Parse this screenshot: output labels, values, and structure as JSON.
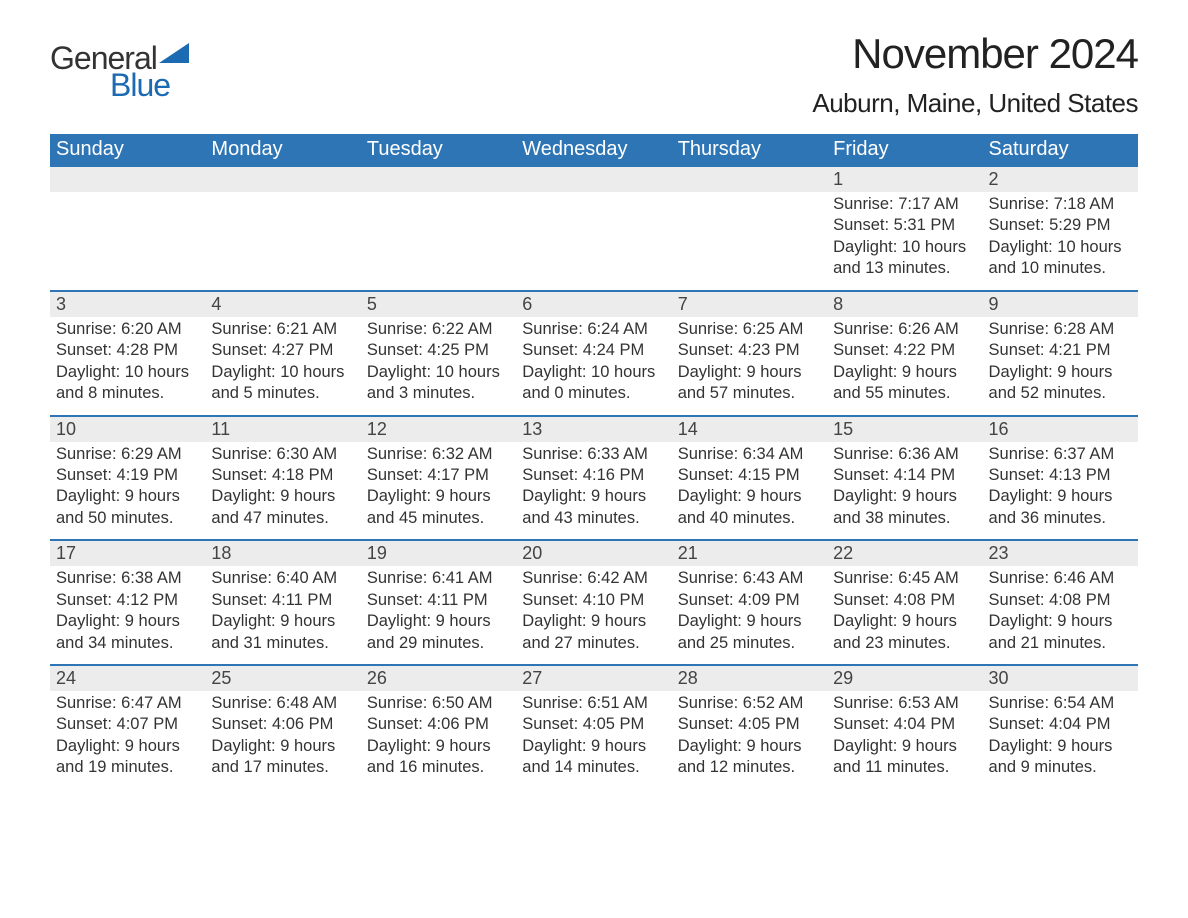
{
  "logo": {
    "word1": "General",
    "word2": "Blue"
  },
  "header": {
    "month_title": "November 2024",
    "location": "Auburn, Maine, United States"
  },
  "styling": {
    "header_bg": "#2e75b6",
    "header_text": "#ffffff",
    "daynum_bg": "#ececec",
    "border_color": "#2e75b6",
    "body_text": "#333333",
    "logo_blue": "#1b6ab2",
    "page_bg": "#ffffff",
    "th_fontsize": 20,
    "title_fontsize": 42,
    "location_fontsize": 26,
    "cell_fontsize": 16.5
  },
  "weekdays": [
    "Sunday",
    "Monday",
    "Tuesday",
    "Wednesday",
    "Thursday",
    "Friday",
    "Saturday"
  ],
  "weeks": [
    {
      "daynums": [
        "",
        "",
        "",
        "",
        "",
        "1",
        "2"
      ],
      "cells": [
        "",
        "",
        "",
        "",
        "",
        "Sunrise: 7:17 AM\nSunset: 5:31 PM\nDaylight: 10 hours and 13 minutes.",
        "Sunrise: 7:18 AM\nSunset: 5:29 PM\nDaylight: 10 hours and 10 minutes."
      ]
    },
    {
      "daynums": [
        "3",
        "4",
        "5",
        "6",
        "7",
        "8",
        "9"
      ],
      "cells": [
        "Sunrise: 6:20 AM\nSunset: 4:28 PM\nDaylight: 10 hours and 8 minutes.",
        "Sunrise: 6:21 AM\nSunset: 4:27 PM\nDaylight: 10 hours and 5 minutes.",
        "Sunrise: 6:22 AM\nSunset: 4:25 PM\nDaylight: 10 hours and 3 minutes.",
        "Sunrise: 6:24 AM\nSunset: 4:24 PM\nDaylight: 10 hours and 0 minutes.",
        "Sunrise: 6:25 AM\nSunset: 4:23 PM\nDaylight: 9 hours and 57 minutes.",
        "Sunrise: 6:26 AM\nSunset: 4:22 PM\nDaylight: 9 hours and 55 minutes.",
        "Sunrise: 6:28 AM\nSunset: 4:21 PM\nDaylight: 9 hours and 52 minutes."
      ]
    },
    {
      "daynums": [
        "10",
        "11",
        "12",
        "13",
        "14",
        "15",
        "16"
      ],
      "cells": [
        "Sunrise: 6:29 AM\nSunset: 4:19 PM\nDaylight: 9 hours and 50 minutes.",
        "Sunrise: 6:30 AM\nSunset: 4:18 PM\nDaylight: 9 hours and 47 minutes.",
        "Sunrise: 6:32 AM\nSunset: 4:17 PM\nDaylight: 9 hours and 45 minutes.",
        "Sunrise: 6:33 AM\nSunset: 4:16 PM\nDaylight: 9 hours and 43 minutes.",
        "Sunrise: 6:34 AM\nSunset: 4:15 PM\nDaylight: 9 hours and 40 minutes.",
        "Sunrise: 6:36 AM\nSunset: 4:14 PM\nDaylight: 9 hours and 38 minutes.",
        "Sunrise: 6:37 AM\nSunset: 4:13 PM\nDaylight: 9 hours and 36 minutes."
      ]
    },
    {
      "daynums": [
        "17",
        "18",
        "19",
        "20",
        "21",
        "22",
        "23"
      ],
      "cells": [
        "Sunrise: 6:38 AM\nSunset: 4:12 PM\nDaylight: 9 hours and 34 minutes.",
        "Sunrise: 6:40 AM\nSunset: 4:11 PM\nDaylight: 9 hours and 31 minutes.",
        "Sunrise: 6:41 AM\nSunset: 4:11 PM\nDaylight: 9 hours and 29 minutes.",
        "Sunrise: 6:42 AM\nSunset: 4:10 PM\nDaylight: 9 hours and 27 minutes.",
        "Sunrise: 6:43 AM\nSunset: 4:09 PM\nDaylight: 9 hours and 25 minutes.",
        "Sunrise: 6:45 AM\nSunset: 4:08 PM\nDaylight: 9 hours and 23 minutes.",
        "Sunrise: 6:46 AM\nSunset: 4:08 PM\nDaylight: 9 hours and 21 minutes."
      ]
    },
    {
      "daynums": [
        "24",
        "25",
        "26",
        "27",
        "28",
        "29",
        "30"
      ],
      "cells": [
        "Sunrise: 6:47 AM\nSunset: 4:07 PM\nDaylight: 9 hours and 19 minutes.",
        "Sunrise: 6:48 AM\nSunset: 4:06 PM\nDaylight: 9 hours and 17 minutes.",
        "Sunrise: 6:50 AM\nSunset: 4:06 PM\nDaylight: 9 hours and 16 minutes.",
        "Sunrise: 6:51 AM\nSunset: 4:05 PM\nDaylight: 9 hours and 14 minutes.",
        "Sunrise: 6:52 AM\nSunset: 4:05 PM\nDaylight: 9 hours and 12 minutes.",
        "Sunrise: 6:53 AM\nSunset: 4:04 PM\nDaylight: 9 hours and 11 minutes.",
        "Sunrise: 6:54 AM\nSunset: 4:04 PM\nDaylight: 9 hours and 9 minutes."
      ]
    }
  ]
}
